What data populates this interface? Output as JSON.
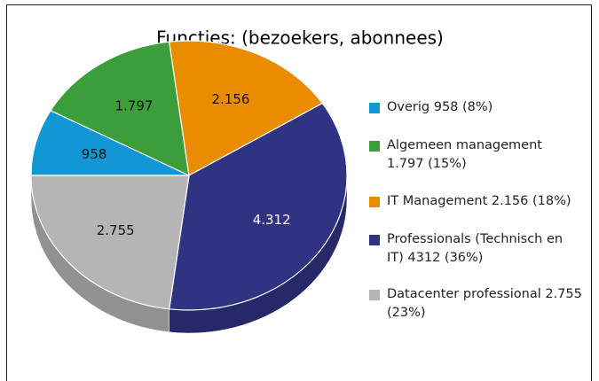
{
  "chart_data": {
    "type": "pie",
    "title": "Functies: (bezoekers, abonnees)",
    "categories": [
      "Overig 958 (8%)",
      "Algemeen management 1.797 (15%)",
      "IT Management 2.156 (18%)",
      "Professionals (Technisch en IT) 4312 (36%)",
      "Datacenter professional 2.755 (23%)"
    ],
    "values": [
      958,
      1797,
      2156,
      4312,
      2755
    ],
    "value_labels": [
      "958",
      "1.797",
      "2.156",
      "4.312",
      "2.755"
    ],
    "colors": [
      "#1198d4",
      "#3c9e3a",
      "#ea8c00",
      "#2f3382",
      "#b5b5b5"
    ],
    "legend": "right"
  }
}
